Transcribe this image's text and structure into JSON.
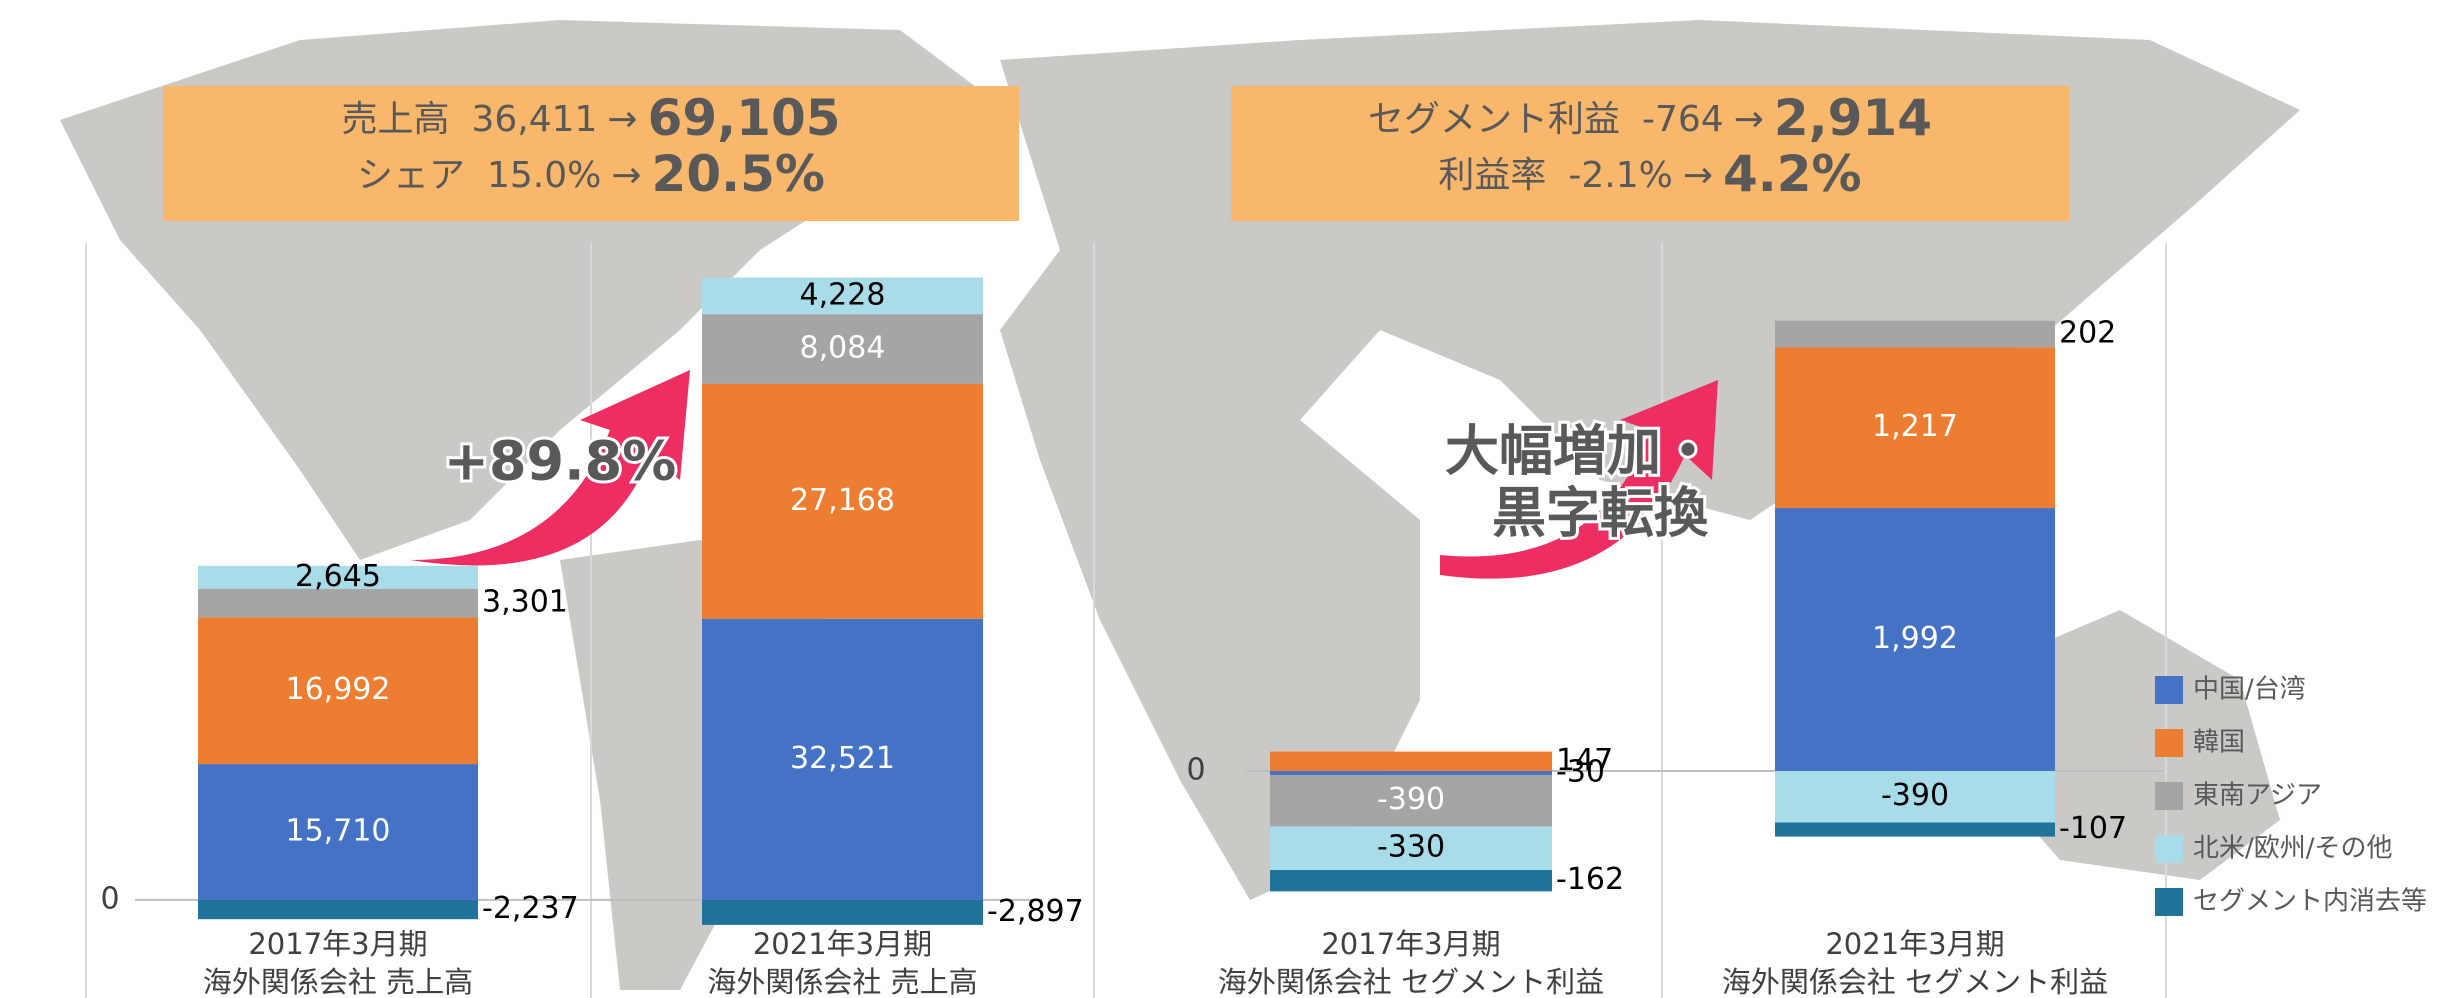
{
  "summaries": [
    {
      "rows": [
        {
          "label": "売上高",
          "from": "36,411",
          "arrow": "→",
          "to": "69,105"
        },
        {
          "label": "シェア",
          "from": "15.0%",
          "arrow": "→",
          "to": "20.5%"
        }
      ]
    },
    {
      "rows": [
        {
          "label": "セグメント利益",
          "from": "-764",
          "arrow": "→",
          "to": "2,914"
        },
        {
          "label": "利益率",
          "from": "-2.1%",
          "arrow": "→",
          "to": "4.2%"
        }
      ]
    }
  ],
  "chart_data": [
    {
      "type": "stacked_bar",
      "categories": [
        [
          "2017年3月期",
          "海外関係会社 売上高"
        ],
        [
          "2021年3月期",
          "海外関係会社 売上高"
        ]
      ],
      "ylim": [
        -8000,
        76000
      ],
      "yticks": [
        0
      ],
      "annotation": [
        "+89.8%"
      ],
      "series": [
        {
          "name": "中国/台湾",
          "color": "#4472c4",
          "values": [
            15710,
            32521
          ],
          "value_labels": [
            "15,710",
            "32,521"
          ]
        },
        {
          "name": "韓国",
          "color": "#ed7d31",
          "values": [
            16992,
            27168
          ],
          "value_labels": [
            "16,992",
            "27,168"
          ]
        },
        {
          "name": "東南アジア",
          "color": "#a5a5a5",
          "values": [
            3301,
            8084
          ],
          "value_labels": [
            "3,301",
            "8,084"
          ]
        },
        {
          "name": "北米/欧州/その他",
          "color": "#a8dce9",
          "values": [
            2645,
            4228
          ],
          "value_labels": [
            "2,645",
            "4,228"
          ]
        },
        {
          "name": "セグメント内消去等",
          "color": "#21739a",
          "values": [
            -2237,
            -2897
          ],
          "value_labels": [
            "-2,237",
            "-2,897"
          ]
        }
      ]
    },
    {
      "type": "stacked_bar",
      "categories": [
        [
          "2017年3月期",
          "海外関係会社 セグメント利益"
        ],
        [
          "2021年3月期",
          "海外関係会社 セグメント利益"
        ]
      ],
      "ylim": [
        -1500,
        4000
      ],
      "yticks": [
        0
      ],
      "annotation": [
        "大幅増加・",
        "黒字転換"
      ],
      "legend": "right",
      "series": [
        {
          "name": "中国/台湾",
          "color": "#4472c4",
          "values": [
            -30,
            1992
          ],
          "value_labels": [
            "-30",
            "1,992"
          ]
        },
        {
          "name": "韓国",
          "color": "#ed7d31",
          "values": [
            147,
            1217
          ],
          "value_labels": [
            "147",
            "1,217"
          ]
        },
        {
          "name": "東南アジア",
          "color": "#a5a5a5",
          "values": [
            -390,
            202
          ],
          "value_labels": [
            "-390",
            "202"
          ]
        },
        {
          "name": "北米/欧州/その他",
          "color": "#a8dce9",
          "values": [
            -330,
            -390
          ],
          "value_labels": [
            "-330",
            "-390"
          ]
        },
        {
          "name": "セグメント内消去等",
          "color": "#21739a",
          "values": [
            -162,
            -107
          ],
          "value_labels": [
            "-162",
            "-107"
          ]
        }
      ]
    }
  ]
}
